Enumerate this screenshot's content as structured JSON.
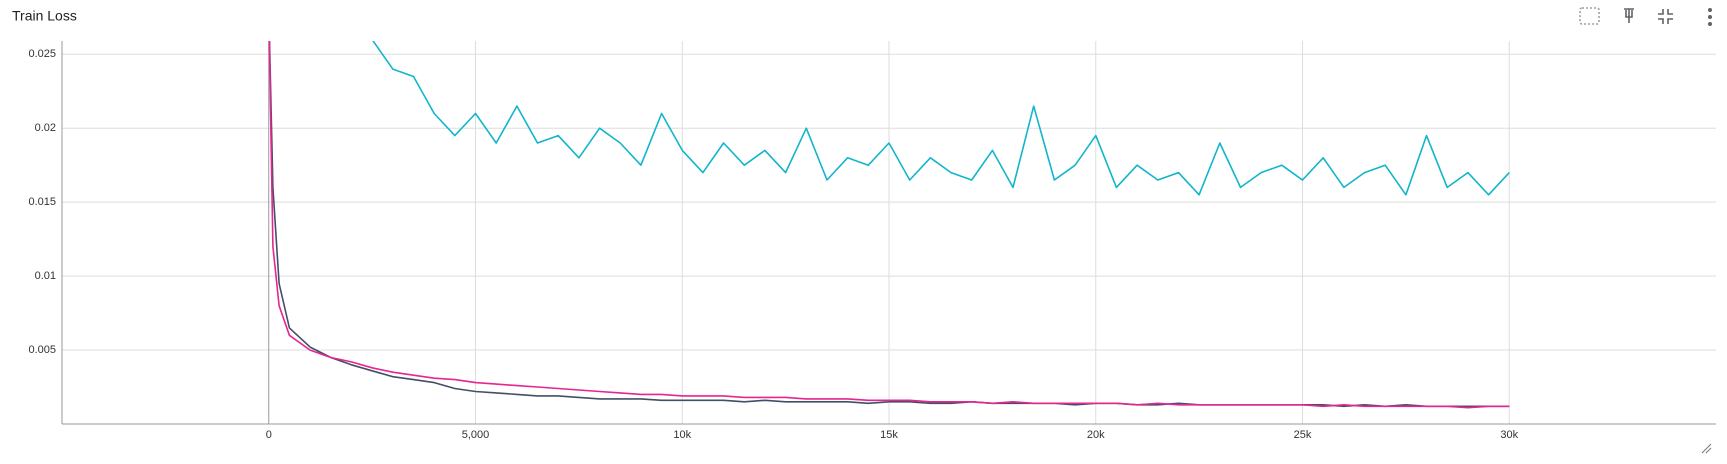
{
  "chart_data": {
    "type": "line",
    "title": "Train Loss",
    "x": [
      0,
      100,
      250,
      500,
      1000,
      1500,
      2000,
      2500,
      3000,
      3500,
      4000,
      4500,
      5000,
      5500,
      6000,
      6500,
      7000,
      7500,
      8000,
      8500,
      9000,
      9500,
      10000,
      10500,
      11000,
      11500,
      12000,
      12500,
      13000,
      13500,
      14000,
      14500,
      15000,
      15500,
      16000,
      16500,
      17000,
      17500,
      18000,
      18500,
      19000,
      19500,
      20000,
      20500,
      21000,
      21500,
      22000,
      22500,
      23000,
      23500,
      24000,
      24500,
      25000,
      25500,
      26000,
      26500,
      27000,
      27500,
      28000,
      28500,
      29000,
      29500,
      30000
    ],
    "series": [
      {
        "color": "#12b5cb",
        "values": [
          null,
          null,
          null,
          null,
          null,
          null,
          null,
          0.026,
          0.024,
          0.0235,
          0.021,
          0.0195,
          0.021,
          0.019,
          0.0215,
          0.019,
          0.0195,
          0.018,
          0.02,
          0.019,
          0.0175,
          0.021,
          0.0185,
          0.017,
          0.019,
          0.0175,
          0.0185,
          0.017,
          0.02,
          0.0165,
          0.018,
          0.0175,
          0.019,
          0.0165,
          0.018,
          0.017,
          0.0165,
          0.0185,
          0.016,
          0.0215,
          0.0165,
          0.0175,
          0.0195,
          0.016,
          0.0175,
          0.0165,
          0.017,
          0.0155,
          0.019,
          0.016,
          0.017,
          0.0175,
          0.0165,
          0.018,
          0.016,
          0.017,
          0.0175,
          0.0155,
          0.0195,
          0.016,
          0.017,
          0.0155,
          0.017
        ]
      },
      {
        "color": "#425066",
        "values": [
          0.028,
          0.016,
          0.0095,
          0.0065,
          0.0052,
          0.0045,
          0.004,
          0.0036,
          0.0032,
          0.003,
          0.0028,
          0.0024,
          0.0022,
          0.0021,
          0.002,
          0.0019,
          0.0019,
          0.0018,
          0.0017,
          0.0017,
          0.0017,
          0.0016,
          0.0016,
          0.0016,
          0.0016,
          0.0015,
          0.0016,
          0.0015,
          0.0015,
          0.0015,
          0.0015,
          0.0014,
          0.0015,
          0.0015,
          0.0014,
          0.0014,
          0.0015,
          0.0014,
          0.0014,
          0.0014,
          0.0014,
          0.0013,
          0.0014,
          0.0014,
          0.0013,
          0.0013,
          0.0014,
          0.0013,
          0.0013,
          0.0013,
          0.0013,
          0.0013,
          0.0013,
          0.0013,
          0.0012,
          0.0013,
          0.0012,
          0.0013,
          0.0012,
          0.0012,
          0.0012,
          0.0012,
          0.0012
        ]
      },
      {
        "color": "#e52592",
        "values": [
          0.028,
          0.012,
          0.008,
          0.006,
          0.005,
          0.0045,
          0.0042,
          0.0038,
          0.0035,
          0.0033,
          0.0031,
          0.003,
          0.0028,
          0.0027,
          0.0026,
          0.0025,
          0.0024,
          0.0023,
          0.0022,
          0.0021,
          0.002,
          0.002,
          0.0019,
          0.0019,
          0.0019,
          0.0018,
          0.0018,
          0.0018,
          0.0017,
          0.0017,
          0.0017,
          0.0016,
          0.0016,
          0.0016,
          0.0015,
          0.0015,
          0.0015,
          0.0014,
          0.0015,
          0.0014,
          0.0014,
          0.0014,
          0.0014,
          0.0014,
          0.0013,
          0.0014,
          0.0013,
          0.0013,
          0.0013,
          0.0013,
          0.0013,
          0.0013,
          0.0013,
          0.0012,
          0.0013,
          0.0012,
          0.0012,
          0.0012,
          0.0012,
          0.0012,
          0.0011,
          0.0012,
          0.0012
        ]
      }
    ],
    "xlim": [
      -5000,
      35000
    ],
    "xticks": [
      0,
      {
        "value": 5000,
        "label": "5,000"
      },
      {
        "value": 10000,
        "label": "10k"
      },
      {
        "value": 15000,
        "label": "15k"
      },
      {
        "value": 20000,
        "label": "20k"
      },
      {
        "value": 25000,
        "label": "25k"
      },
      {
        "value": 30000,
        "label": "30k"
      }
    ],
    "ylim": [
      0,
      0.0259
    ],
    "yticks": [
      0.005,
      0.01,
      0.015,
      0.02,
      0.025
    ],
    "grid": true
  }
}
